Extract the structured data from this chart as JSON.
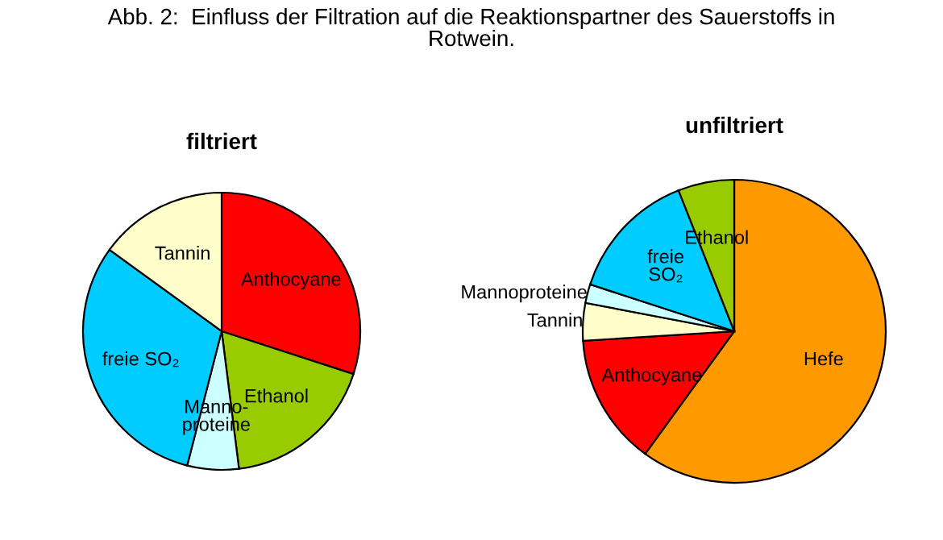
{
  "chart_data": [
    {
      "type": "pie",
      "title": "filtriert",
      "annotations": [
        "Abb. 2:  Einfluss der Filtration auf die Reaktionspartner des Sauerstoffs in\nRotwein."
      ],
      "categories": [
        "Anthocyane",
        "Ethanol",
        "Manno-\nproteine",
        "freie SO₂",
        "Tannin"
      ],
      "values": [
        30,
        18,
        6,
        31,
        15
      ],
      "colors": [
        "#ff0000",
        "#99cc00",
        "#ccffff",
        "#00ccff",
        "#ffffcc"
      ]
    },
    {
      "type": "pie",
      "title": "unfiltriert",
      "categories": [
        "Hefe",
        "Anthocyane",
        "Tannin",
        "Mannoproteine",
        "freie\nSO₂",
        "Ethanol"
      ],
      "values": [
        60,
        14,
        4,
        2,
        14,
        6
      ],
      "colors": [
        "#ff9900",
        "#ff0000",
        "#ffffcc",
        "#ccffff",
        "#00ccff",
        "#99cc00"
      ]
    }
  ]
}
